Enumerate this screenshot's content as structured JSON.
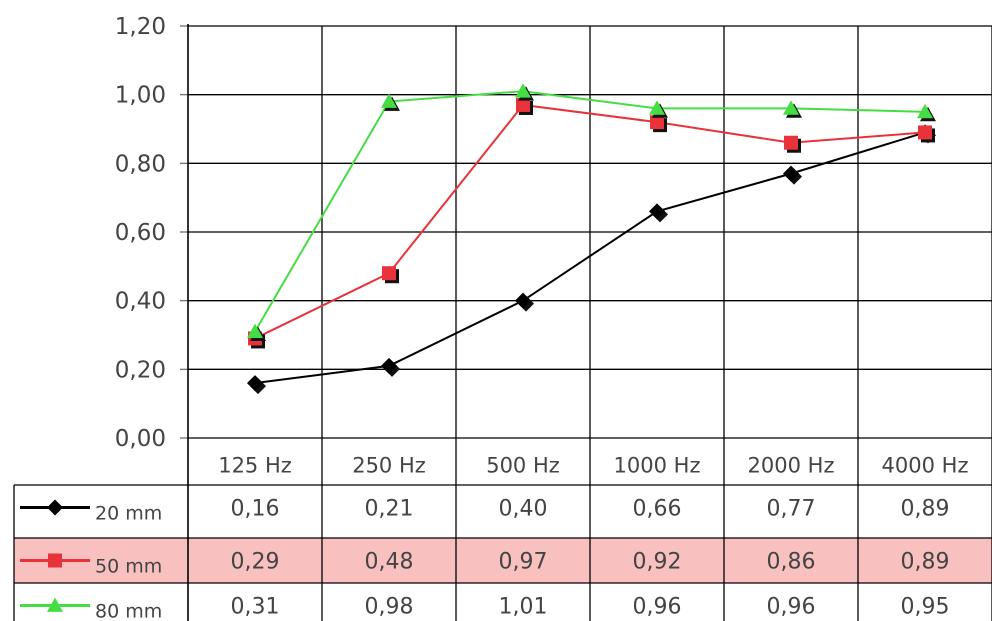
{
  "chart_data": {
    "type": "line",
    "categories": [
      "125 Hz",
      "250 Hz",
      "500 Hz",
      "1000 Hz",
      "2000 Hz",
      "4000 Hz"
    ],
    "y_tick_labels": [
      "0,00",
      "0,20",
      "0,40",
      "0,60",
      "0,80",
      "1,00",
      "1,20"
    ],
    "ylim": [
      0,
      1.2
    ],
    "grid": true,
    "legend": "data-table-below",
    "series": [
      {
        "name": "20 mm",
        "color": "#000000",
        "marker": "diamond",
        "values": [
          0.16,
          0.21,
          0.4,
          0.66,
          0.77,
          0.89
        ],
        "labels": [
          "0,16",
          "0,21",
          "0,40",
          "0,66",
          "0,77",
          "0,89"
        ]
      },
      {
        "name": "50 mm",
        "color": "#e8333a",
        "marker": "square",
        "values": [
          0.29,
          0.48,
          0.97,
          0.92,
          0.86,
          0.89
        ],
        "labels": [
          "0,29",
          "0,48",
          "0,97",
          "0,92",
          "0,86",
          "0,89"
        ],
        "row_highlight": "#f9c0c0"
      },
      {
        "name": "80 mm",
        "color": "#44dd44",
        "marker": "triangle",
        "values": [
          0.31,
          0.98,
          1.01,
          0.96,
          0.96,
          0.95
        ],
        "labels": [
          "0,31",
          "0,98",
          "1,01",
          "0,96",
          "0,96",
          "0,95"
        ]
      }
    ]
  }
}
